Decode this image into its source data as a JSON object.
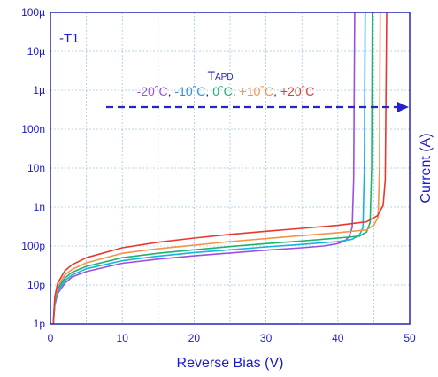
{
  "chart_data": {
    "type": "line",
    "title": "",
    "xlabel": "Reverse Bias (V)",
    "ylabel": "Current (A)",
    "xlim": [
      0,
      50
    ],
    "ylim": [
      1e-12,
      0.0001
    ],
    "yscale": "log",
    "grid": true,
    "x_ticks": [
      "0",
      "10",
      "20",
      "30",
      "40",
      "50"
    ],
    "y_ticks": [
      "1p",
      "10p",
      "100p",
      "1n",
      "10n",
      "100n",
      "1µ",
      "10µ",
      "100µ"
    ],
    "device_label": "-T1",
    "annotation": {
      "title_main": "T",
      "title_sub": "APD",
      "legend_position": "top-center",
      "arrow": "increasing temperature →"
    },
    "series": [
      {
        "name": "-20˚C",
        "color": "#9b4fe0",
        "points": [
          [
            0.4,
            1e-12
          ],
          [
            0.6,
            3e-12
          ],
          [
            1,
            6e-12
          ],
          [
            2,
            1.1e-11
          ],
          [
            3,
            1.6e-11
          ],
          [
            5,
            2.2e-11
          ],
          [
            10,
            3.6e-11
          ],
          [
            15,
            4.6e-11
          ],
          [
            20,
            5.6e-11
          ],
          [
            25,
            6.6e-11
          ],
          [
            30,
            7.8e-11
          ],
          [
            35,
            9e-11
          ],
          [
            38,
            1e-10
          ],
          [
            40,
            1.15e-10
          ],
          [
            41,
            1.35e-10
          ],
          [
            41.6,
            1.8e-10
          ],
          [
            42,
            3e-10
          ],
          [
            42.2,
            5e-09
          ],
          [
            42.35,
            0.0001
          ]
        ]
      },
      {
        "name": "-10˚C",
        "label_color": "#2a8fe0",
        "color": "#16b3dc",
        "points": [
          [
            0.4,
            1e-12
          ],
          [
            0.6,
            3.5e-12
          ],
          [
            1,
            7e-12
          ],
          [
            2,
            1.3e-11
          ],
          [
            3,
            1.8e-11
          ],
          [
            5,
            2.6e-11
          ],
          [
            10,
            4.2e-11
          ],
          [
            15,
            5.5e-11
          ],
          [
            20,
            6.8e-11
          ],
          [
            25,
            8e-11
          ],
          [
            30,
            9.5e-11
          ],
          [
            35,
            1.1e-10
          ],
          [
            40,
            1.3e-10
          ],
          [
            42,
            1.5e-10
          ],
          [
            43,
            1.9e-10
          ],
          [
            43.5,
            3e-10
          ],
          [
            43.7,
            1e-08
          ],
          [
            43.8,
            0.0001
          ]
        ]
      },
      {
        "name": "0˚C",
        "color": "#1db36a",
        "points": [
          [
            0.4,
            1e-12
          ],
          [
            0.6,
            4e-12
          ],
          [
            1,
            8e-12
          ],
          [
            2,
            1.5e-11
          ],
          [
            3,
            2.1e-11
          ],
          [
            5,
            3e-11
          ],
          [
            10,
            5e-11
          ],
          [
            15,
            6.5e-11
          ],
          [
            20,
            8e-11
          ],
          [
            25,
            9.7e-11
          ],
          [
            30,
            1.15e-10
          ],
          [
            35,
            1.35e-10
          ],
          [
            40,
            1.6e-10
          ],
          [
            43,
            1.8e-10
          ],
          [
            44,
            2.3e-10
          ],
          [
            44.5,
            4e-10
          ],
          [
            44.7,
            1e-08
          ],
          [
            44.8,
            0.0001
          ]
        ]
      },
      {
        "name": "+10˚C",
        "color": "#f2944a",
        "points": [
          [
            0.4,
            1e-12
          ],
          [
            0.6,
            4.5e-12
          ],
          [
            1,
            9e-12
          ],
          [
            2,
            1.8e-11
          ],
          [
            3,
            2.5e-11
          ],
          [
            5,
            3.7e-11
          ],
          [
            10,
            6.5e-11
          ],
          [
            15,
            8.5e-11
          ],
          [
            20,
            1.05e-10
          ],
          [
            25,
            1.3e-10
          ],
          [
            30,
            1.55e-10
          ],
          [
            35,
            1.85e-10
          ],
          [
            40,
            2.2e-10
          ],
          [
            44,
            2.6e-10
          ],
          [
            45,
            3.4e-10
          ],
          [
            45.6,
            5.5e-10
          ],
          [
            45.8,
            1e-08
          ],
          [
            45.9,
            0.0001
          ]
        ]
      },
      {
        "name": "+20˚C",
        "color": "#e8382d",
        "points": [
          [
            0.4,
            1e-12
          ],
          [
            0.6,
            5e-12
          ],
          [
            1,
            1.1e-11
          ],
          [
            2,
            2.3e-11
          ],
          [
            3,
            3.3e-11
          ],
          [
            5,
            5e-11
          ],
          [
            10,
            9e-11
          ],
          [
            15,
            1.25e-10
          ],
          [
            20,
            1.6e-10
          ],
          [
            25,
            2e-10
          ],
          [
            30,
            2.4e-10
          ],
          [
            35,
            2.85e-10
          ],
          [
            40,
            3.4e-10
          ],
          [
            44,
            4.2e-10
          ],
          [
            45.5,
            6e-10
          ],
          [
            46.3,
            1.1e-09
          ],
          [
            46.6,
            5e-09
          ],
          [
            46.8,
            0.0001
          ]
        ]
      }
    ]
  }
}
